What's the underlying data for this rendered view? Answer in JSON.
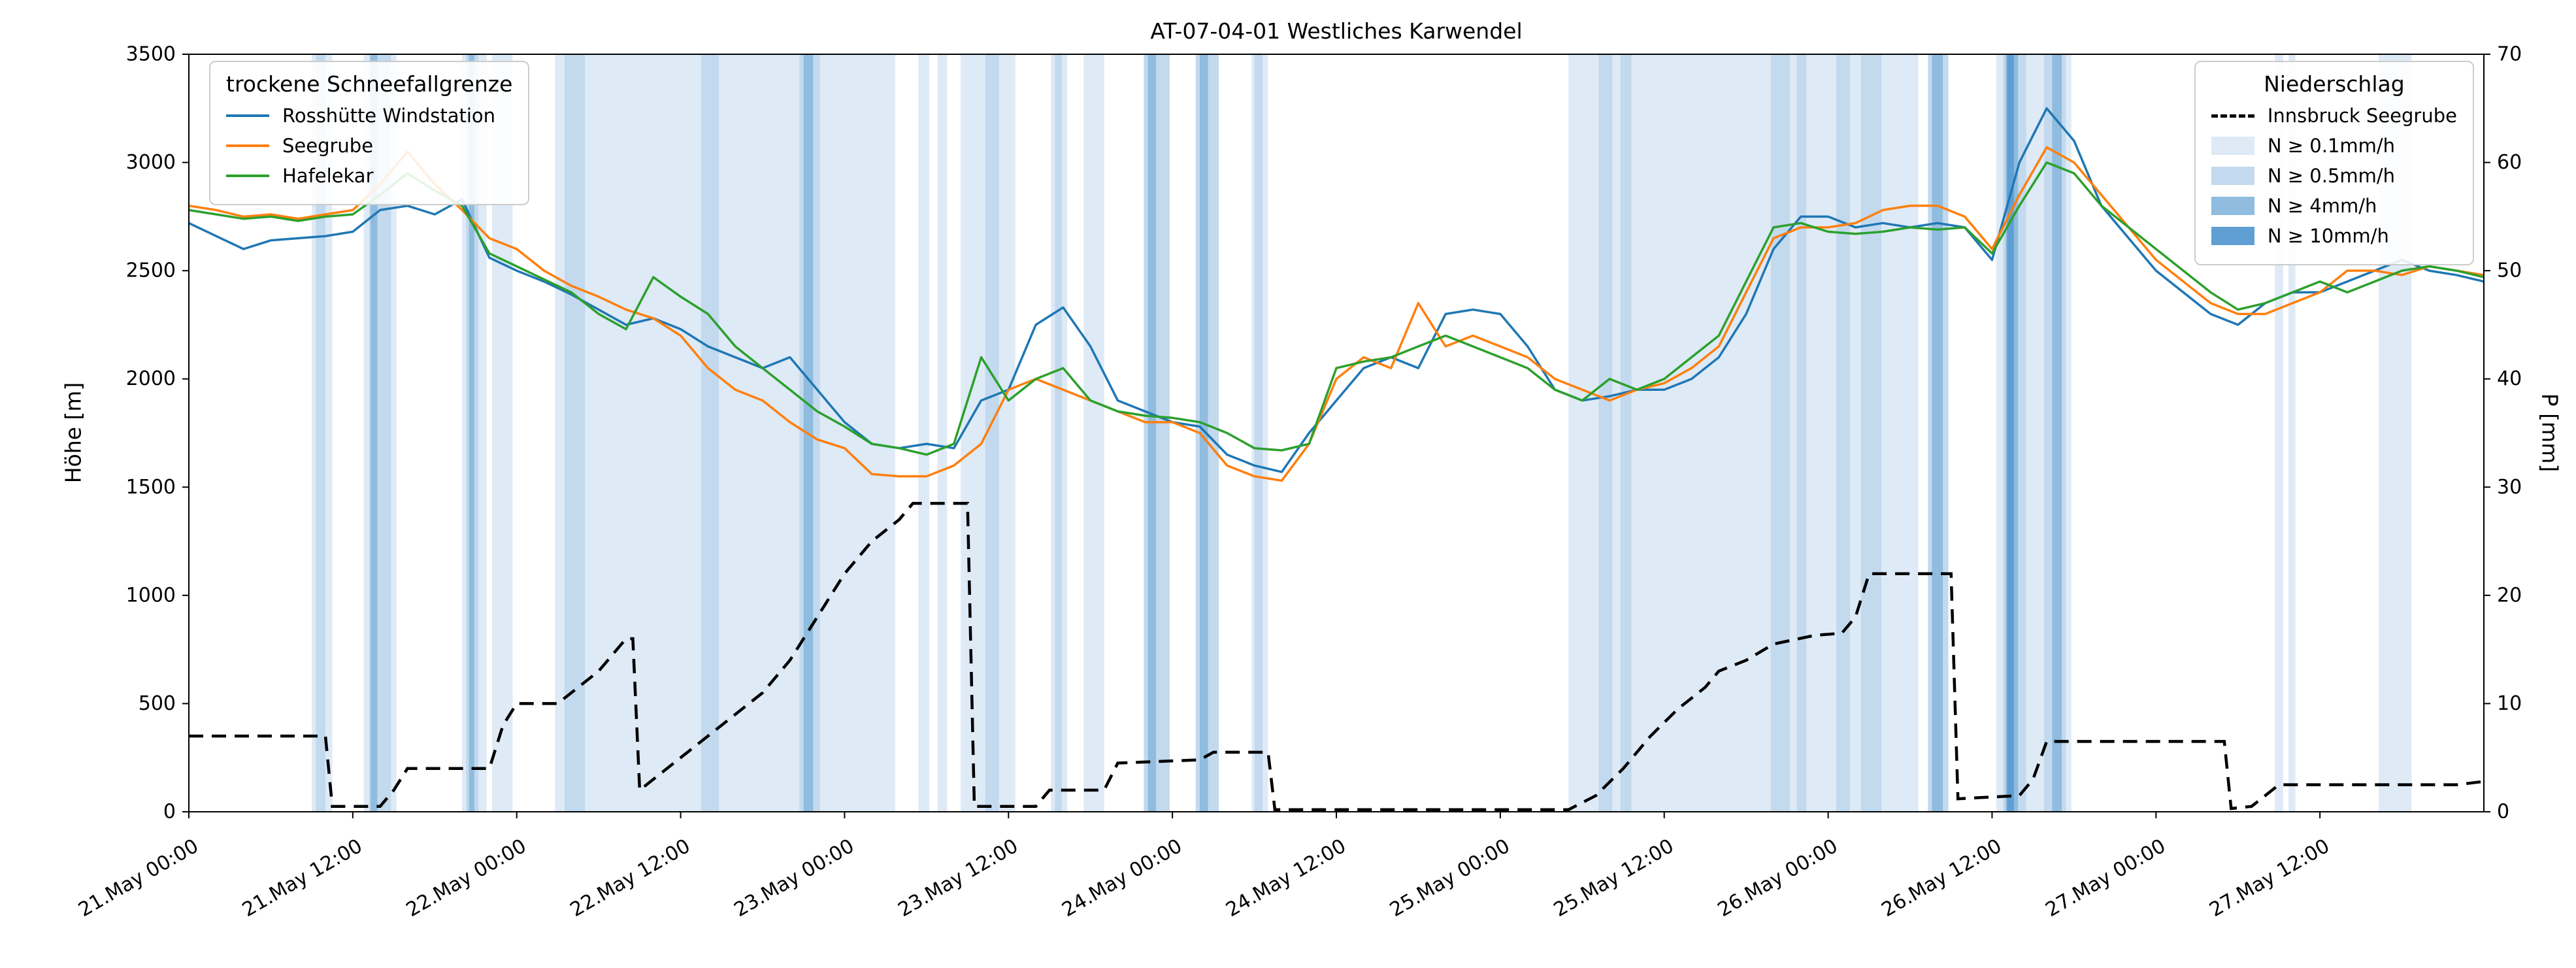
{
  "title": "AT-07-04-01 Westliches Karwendel",
  "axes": {
    "left": {
      "label": "Höhe [m]",
      "range": [
        0,
        3500
      ],
      "ticks": [
        0,
        500,
        1000,
        1500,
        2000,
        2500,
        3000,
        3500
      ]
    },
    "right": {
      "label": "P [mm]",
      "range": [
        0,
        70
      ],
      "ticks": [
        0,
        10,
        20,
        30,
        40,
        50,
        60,
        70
      ]
    },
    "x": {
      "tick_hours": [
        0,
        12,
        24,
        36,
        48,
        60,
        72,
        84,
        96,
        108,
        120,
        132,
        144,
        156
      ],
      "tick_labels": [
        "21.May 00:00",
        "21.May 12:00",
        "22.May 00:00",
        "22.May 12:00",
        "23.May 00:00",
        "23.May 12:00",
        "24.May 00:00",
        "24.May 12:00",
        "25.May 00:00",
        "25.May 12:00",
        "26.May 00:00",
        "26.May 12:00",
        "27.May 00:00",
        "27.May 12:00"
      ]
    }
  },
  "legend_snowline": {
    "title": "trockene Schneefallgrenze",
    "entries": [
      {
        "label": "Rosshütte Windstation",
        "color": "#1f77b4"
      },
      {
        "label": "Seegrube",
        "color": "#ff7f0e"
      },
      {
        "label": "Hafelekar",
        "color": "#2ca02c"
      }
    ]
  },
  "legend_precip": {
    "title": "Niederschlag",
    "entries": [
      {
        "label": "Innsbruck Seegrube",
        "color": "#000000",
        "swatch": "dashed-line"
      },
      {
        "label": "N ≥ 0.1mm/h",
        "color": "#deeaf6",
        "swatch": "patch"
      },
      {
        "label": "N ≥ 0.5mm/h",
        "color": "#c3d9ee",
        "swatch": "patch"
      },
      {
        "label": "N ≥ 4mm/h",
        "color": "#8fbcdf",
        "swatch": "patch"
      },
      {
        "label": "N ≥ 10mm/h",
        "color": "#5f9fd3",
        "swatch": "patch"
      }
    ]
  },
  "chart_data": {
    "type": "line",
    "title": "AT-07-04-01 Westliches Karwendel",
    "x_unit": "hours since 21.May 00:00",
    "x_range_hours": [
      0,
      168
    ],
    "x_hours": [
      0,
      2,
      4,
      6,
      8,
      10,
      12,
      14,
      16,
      18,
      20,
      22,
      24,
      26,
      28,
      30,
      32,
      34,
      36,
      38,
      40,
      42,
      44,
      46,
      48,
      50,
      52,
      54,
      56,
      58,
      60,
      62,
      64,
      66,
      68,
      70,
      72,
      74,
      76,
      78,
      80,
      82,
      84,
      86,
      88,
      90,
      92,
      94,
      96,
      98,
      100,
      102,
      104,
      106,
      108,
      110,
      112,
      114,
      116,
      118,
      120,
      122,
      124,
      126,
      128,
      130,
      132,
      134,
      136,
      138,
      140,
      142,
      144,
      146,
      148,
      150,
      152,
      154,
      156,
      158,
      160,
      162,
      164,
      166,
      168
    ],
    "series": [
      {
        "name": "Rosshütte Windstation",
        "axis": "left",
        "color": "#1f77b4",
        "values": [
          2720,
          2660,
          2600,
          2640,
          2650,
          2660,
          2680,
          2780,
          2800,
          2760,
          2830,
          2560,
          2500,
          2450,
          2390,
          2320,
          2250,
          2280,
          2230,
          2150,
          2100,
          2050,
          2100,
          1950,
          1800,
          1700,
          1680,
          1700,
          1680,
          1900,
          1950,
          2250,
          2330,
          2150,
          1900,
          1850,
          1800,
          1780,
          1650,
          1600,
          1570,
          1750,
          1900,
          2050,
          2100,
          2050,
          2300,
          2320,
          2300,
          2150,
          1950,
          1900,
          1920,
          1950,
          1950,
          2000,
          2100,
          2300,
          2600,
          2750,
          2750,
          2700,
          2720,
          2700,
          2720,
          2700,
          2550,
          3000,
          3250,
          3100,
          2800,
          2650,
          2500,
          2400,
          2300,
          2250,
          2350,
          2400,
          2400,
          2450,
          2500,
          2550,
          2500,
          2480,
          2450
        ]
      },
      {
        "name": "Seegrube",
        "axis": "left",
        "color": "#ff7f0e",
        "values": [
          2800,
          2780,
          2750,
          2760,
          2740,
          2760,
          2780,
          2900,
          3050,
          2900,
          2780,
          2650,
          2600,
          2500,
          2430,
          2380,
          2320,
          2280,
          2200,
          2050,
          1950,
          1900,
          1800,
          1720,
          1680,
          1560,
          1550,
          1550,
          1600,
          1700,
          1950,
          2000,
          1950,
          1900,
          1850,
          1800,
          1800,
          1750,
          1600,
          1550,
          1530,
          1700,
          2000,
          2100,
          2050,
          2350,
          2150,
          2200,
          2150,
          2100,
          2000,
          1950,
          1900,
          1950,
          1980,
          2050,
          2150,
          2400,
          2650,
          2700,
          2700,
          2720,
          2780,
          2800,
          2800,
          2750,
          2600,
          2850,
          3070,
          3000,
          2850,
          2700,
          2550,
          2450,
          2350,
          2300,
          2300,
          2350,
          2400,
          2500,
          2500,
          2480,
          2520,
          2500,
          2480
        ]
      },
      {
        "name": "Hafelekar",
        "axis": "left",
        "color": "#2ca02c",
        "values": [
          2780,
          2760,
          2740,
          2750,
          2730,
          2750,
          2760,
          2850,
          2950,
          2870,
          2800,
          2580,
          2520,
          2460,
          2400,
          2300,
          2230,
          2470,
          2380,
          2300,
          2150,
          2050,
          1950,
          1850,
          1780,
          1700,
          1680,
          1650,
          1700,
          2100,
          1900,
          2000,
          2050,
          1900,
          1850,
          1830,
          1820,
          1800,
          1750,
          1680,
          1670,
          1700,
          2050,
          2080,
          2100,
          2150,
          2200,
          2150,
          2100,
          2050,
          1950,
          1900,
          2000,
          1950,
          2000,
          2100,
          2200,
          2450,
          2700,
          2720,
          2680,
          2670,
          2680,
          2700,
          2690,
          2700,
          2580,
          2800,
          3000,
          2950,
          2800,
          2700,
          2600,
          2500,
          2400,
          2320,
          2350,
          2400,
          2450,
          2400,
          2450,
          2500,
          2520,
          2500,
          2470
        ]
      }
    ],
    "precip_line": {
      "name": "Innsbruck Seegrube",
      "axis": "right",
      "color": "#000000",
      "style": "dashed",
      "x_hours": [
        0,
        10,
        10.5,
        14,
        15,
        16,
        22,
        23,
        24,
        27,
        28,
        30,
        32,
        32.5,
        33,
        34,
        36,
        38,
        40,
        42,
        44,
        46,
        48,
        50,
        52,
        53,
        57,
        57.5,
        62,
        63,
        67,
        68,
        74,
        75,
        79,
        79.5,
        101,
        103,
        105,
        107,
        109,
        111,
        112,
        114,
        116,
        119,
        121,
        122,
        123,
        129,
        129.5,
        134,
        135,
        136,
        149,
        149.5,
        151,
        152,
        153,
        166,
        168
      ],
      "values": [
        7,
        7,
        0.5,
        0.5,
        2,
        4,
        4,
        8,
        10,
        10,
        11,
        13,
        16,
        16,
        2,
        3,
        5,
        7,
        9,
        11,
        14,
        18,
        22,
        25,
        27,
        28.5,
        28.5,
        0.5,
        0.5,
        2,
        2,
        4.5,
        4.8,
        5.5,
        5.5,
        0.2,
        0.2,
        1.5,
        4,
        7,
        9.5,
        11.5,
        13,
        14,
        15.5,
        16.3,
        16.5,
        18,
        22,
        22,
        1.2,
        1.5,
        3,
        6.5,
        6.5,
        0.3,
        0.5,
        1.5,
        2.5,
        2.5,
        2.8
      ]
    },
    "band_colors": {
      "0.1": "#deeaf6",
      "0.5": "#c3d9ee",
      "4": "#8fbcdf",
      "10": "#5f9fd3"
    },
    "precip_bands": [
      {
        "start": 9.0,
        "end": 10.5,
        "level": "0.1"
      },
      {
        "start": 9.3,
        "end": 10.0,
        "level": "0.5"
      },
      {
        "start": 12.8,
        "end": 15.2,
        "level": "0.1"
      },
      {
        "start": 13.2,
        "end": 14.8,
        "level": "0.5"
      },
      {
        "start": 13.3,
        "end": 13.8,
        "level": "4"
      },
      {
        "start": 20.0,
        "end": 21.8,
        "level": "0.1"
      },
      {
        "start": 20.3,
        "end": 21.2,
        "level": "0.5"
      },
      {
        "start": 20.5,
        "end": 20.9,
        "level": "4"
      },
      {
        "start": 22.2,
        "end": 23.7,
        "level": "0.1"
      },
      {
        "start": 26.8,
        "end": 51.7,
        "level": "0.1"
      },
      {
        "start": 27.5,
        "end": 29.0,
        "level": "0.5"
      },
      {
        "start": 37.5,
        "end": 38.8,
        "level": "0.5"
      },
      {
        "start": 44.7,
        "end": 46.2,
        "level": "0.5"
      },
      {
        "start": 45.0,
        "end": 45.7,
        "level": "4"
      },
      {
        "start": 53.4,
        "end": 54.2,
        "level": "0.1"
      },
      {
        "start": 54.8,
        "end": 55.5,
        "level": "0.1"
      },
      {
        "start": 56.5,
        "end": 60.5,
        "level": "0.1"
      },
      {
        "start": 58.3,
        "end": 59.3,
        "level": "0.5"
      },
      {
        "start": 63.1,
        "end": 64.3,
        "level": "0.1"
      },
      {
        "start": 63.4,
        "end": 63.9,
        "level": "0.5"
      },
      {
        "start": 65.5,
        "end": 67.0,
        "level": "0.1"
      },
      {
        "start": 69.9,
        "end": 71.8,
        "level": "0.5"
      },
      {
        "start": 70.2,
        "end": 70.8,
        "level": "4"
      },
      {
        "start": 73.7,
        "end": 75.4,
        "level": "0.5"
      },
      {
        "start": 74.0,
        "end": 74.6,
        "level": "4"
      },
      {
        "start": 77.8,
        "end": 79.0,
        "level": "0.1"
      },
      {
        "start": 78.0,
        "end": 78.6,
        "level": "0.5"
      },
      {
        "start": 101.0,
        "end": 107.0,
        "level": "0.1"
      },
      {
        "start": 103.2,
        "end": 104.2,
        "level": "0.5"
      },
      {
        "start": 104.8,
        "end": 105.6,
        "level": "0.5"
      },
      {
        "start": 107.0,
        "end": 119.9,
        "level": "0.1"
      },
      {
        "start": 115.8,
        "end": 117.2,
        "level": "0.5"
      },
      {
        "start": 117.7,
        "end": 118.4,
        "level": "0.5"
      },
      {
        "start": 119.9,
        "end": 126.6,
        "level": "0.1"
      },
      {
        "start": 120.6,
        "end": 121.6,
        "level": "0.5"
      },
      {
        "start": 122.4,
        "end": 123.9,
        "level": "0.5"
      },
      {
        "start": 127.3,
        "end": 128.8,
        "level": "0.5"
      },
      {
        "start": 127.6,
        "end": 128.4,
        "level": "4"
      },
      {
        "start": 132.3,
        "end": 137.8,
        "level": "0.1"
      },
      {
        "start": 132.8,
        "end": 134.5,
        "level": "0.5"
      },
      {
        "start": 133.0,
        "end": 133.9,
        "level": "4"
      },
      {
        "start": 133.1,
        "end": 133.6,
        "level": "10"
      },
      {
        "start": 135.8,
        "end": 137.4,
        "level": "0.5"
      },
      {
        "start": 136.4,
        "end": 137.1,
        "level": "4"
      },
      {
        "start": 152.7,
        "end": 153.3,
        "level": "0.1"
      },
      {
        "start": 153.7,
        "end": 154.2,
        "level": "0.1"
      },
      {
        "start": 160.3,
        "end": 162.7,
        "level": "0.1"
      }
    ]
  }
}
